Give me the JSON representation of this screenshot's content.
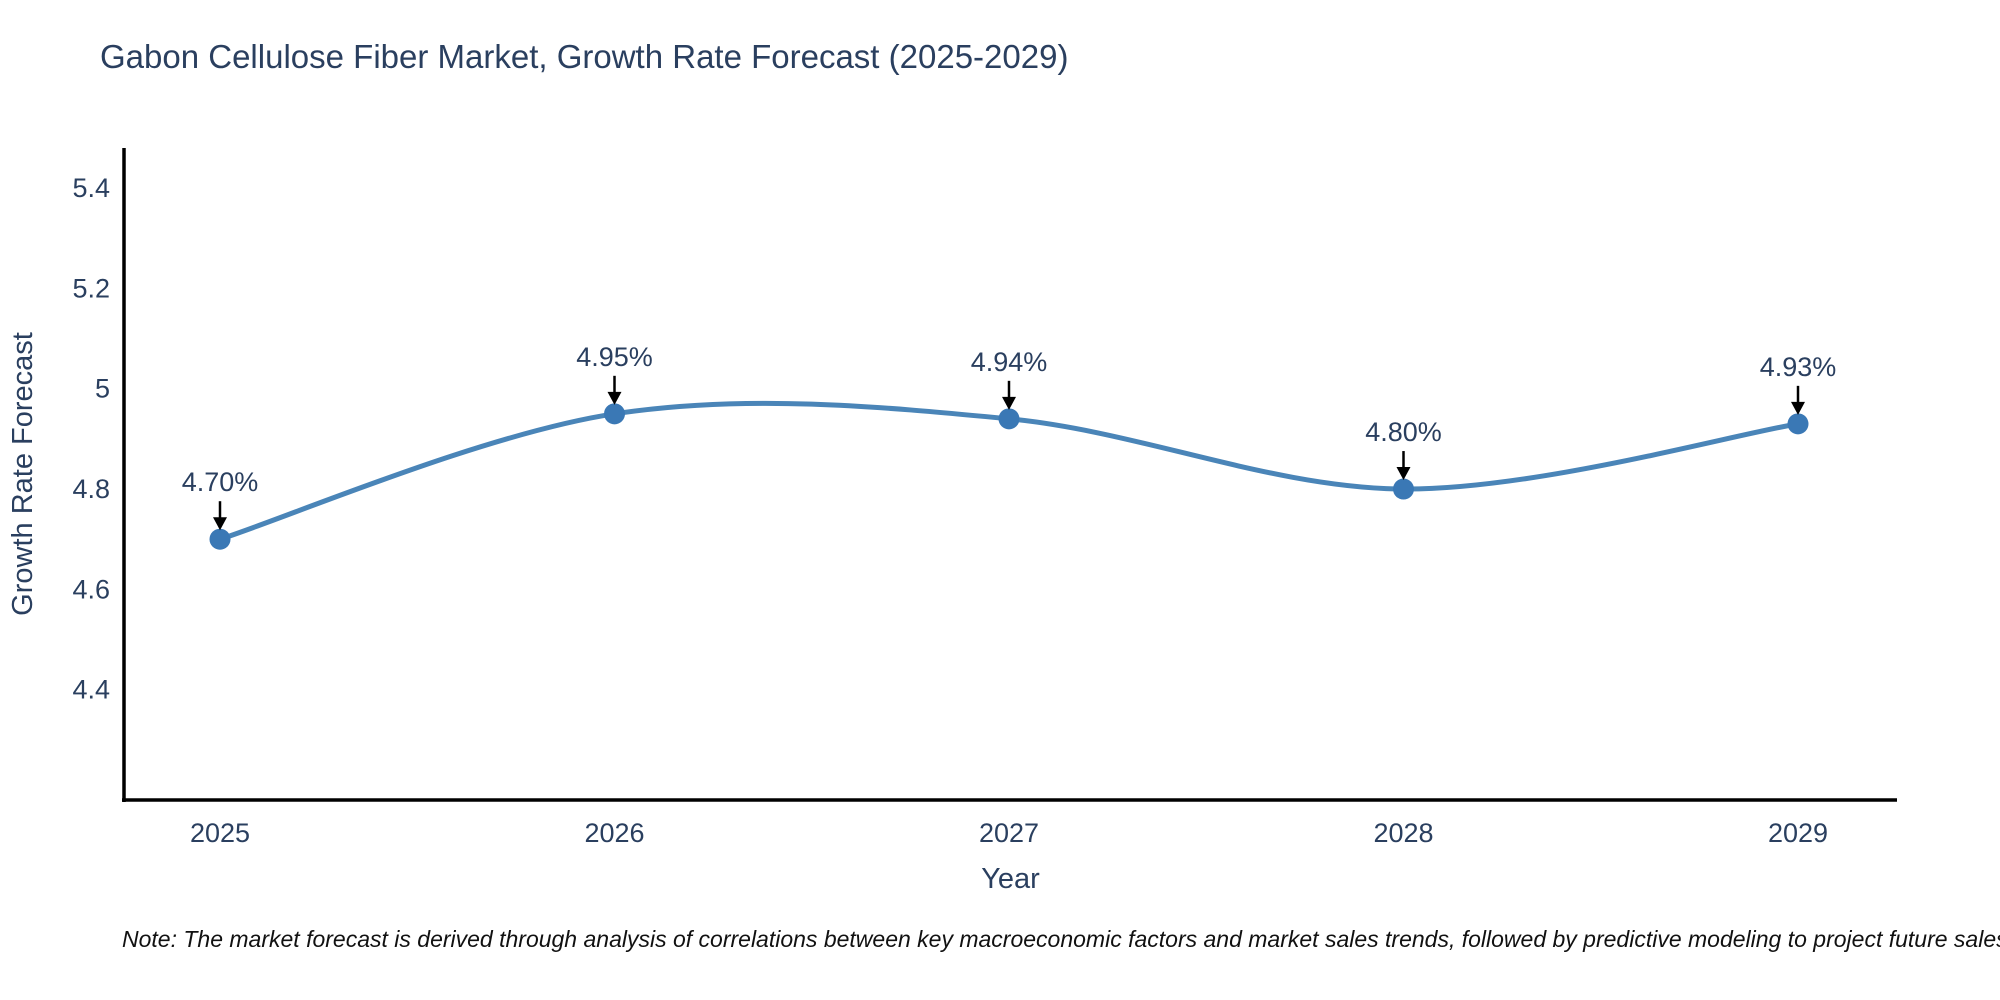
{
  "title": "Gabon Cellulose Fiber Market, Growth Rate Forecast (2025-2029)",
  "note": "Note: The market forecast is derived through analysis of correlations between key macroeconomic factors and market sales trends, followed by predictive modeling to project future sales",
  "colors": {
    "text": "#2a3f5f",
    "axis": "#000000",
    "line": "#4a85b8",
    "marker": "#3a78b5",
    "arrow": "#000000"
  },
  "chart_data": {
    "type": "line",
    "title": "Gabon Cellulose Fiber Market, Growth Rate Forecast (2025-2029)",
    "x": [
      2025,
      2026,
      2027,
      2028,
      2029
    ],
    "categories": [
      "2025",
      "2026",
      "2027",
      "2028",
      "2029"
    ],
    "series": [
      {
        "name": "Growth Rate Forecast",
        "values": [
          4.7,
          4.95,
          4.94,
          4.8,
          4.93
        ]
      }
    ],
    "point_labels": [
      "4.70%",
      "4.95%",
      "4.94%",
      "4.80%",
      "4.93%"
    ],
    "xlabel": "Year",
    "ylabel": "Growth Rate Forecast",
    "yticks": [
      4.4,
      4.6,
      4.8,
      5,
      5.2,
      5.4
    ],
    "ytick_labels": [
      "4.4",
      "4.6",
      "4.8",
      "5",
      "5.2",
      "5.4"
    ],
    "ylim": [
      4.18,
      5.48
    ],
    "grid": false,
    "legend": "none",
    "line_shape": "spline",
    "annotations": "value labels with downward arrows above each data point"
  }
}
